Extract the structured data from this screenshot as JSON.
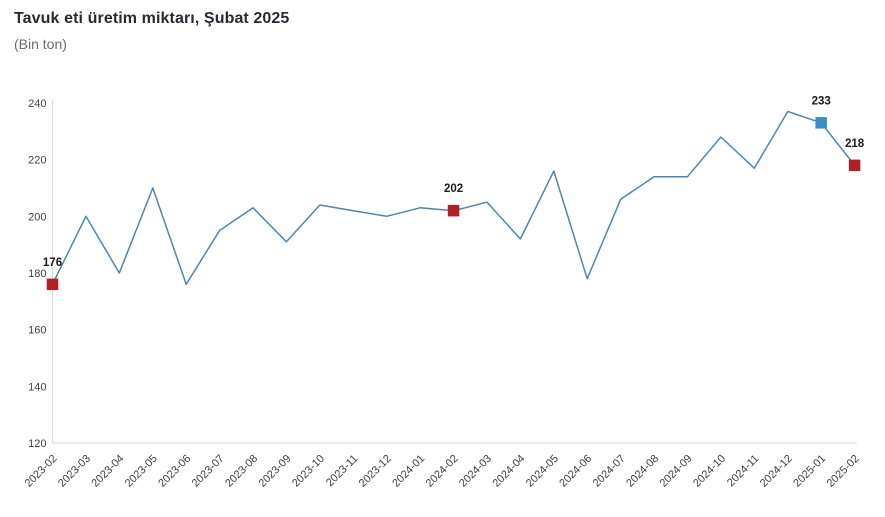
{
  "page": {
    "title": "Tavuk eti üretim miktarı, Şubat 2025",
    "subtitle": "(Bin ton)"
  },
  "chart_data": {
    "type": "line",
    "title": "Tavuk eti üretim miktarı, Şubat 2025",
    "subtitle": "(Bin ton)",
    "unit": "Bin ton",
    "x": [
      "2023-02",
      "2023-03",
      "2023-04",
      "2023-05",
      "2023-06",
      "2023-07",
      "2023-08",
      "2023-09",
      "2023-10",
      "2023-11",
      "2023-12",
      "2024-01",
      "2024-02",
      "2024-03",
      "2024-04",
      "2024-05",
      "2024-06",
      "2024-07",
      "2024-08",
      "2024-09",
      "2024-10",
      "2024-11",
      "2024-12",
      "2025-01",
      "2025-02"
    ],
    "values": [
      176,
      200,
      180,
      210,
      176,
      195,
      203,
      191,
      204,
      202,
      200,
      203,
      202,
      205,
      192,
      216,
      178,
      206,
      214,
      214,
      228,
      217,
      237,
      233,
      218
    ],
    "ylim": [
      120,
      240
    ],
    "ytick_step": 20,
    "yticks": [
      240,
      220,
      200,
      180,
      160,
      140,
      120
    ],
    "grid": "off",
    "legend": "none",
    "line_color": "#4e86ae",
    "axis_color": "#d9d9d9",
    "tick_label_color": "#404040",
    "point_label_color": "#1a1a1a",
    "highlighted_points": [
      {
        "x": "2023-02",
        "index": 0,
        "value": 176,
        "label": "176",
        "color": "#b21f24"
      },
      {
        "x": "2024-02",
        "index": 12,
        "value": 202,
        "label": "202",
        "color": "#b21f24"
      },
      {
        "x": "2025-01",
        "index": 23,
        "value": 233,
        "label": "233",
        "color": "#3a8cc7"
      },
      {
        "x": "2025-02",
        "index": 24,
        "value": 218,
        "label": "218",
        "color": "#b21f24"
      }
    ]
  }
}
